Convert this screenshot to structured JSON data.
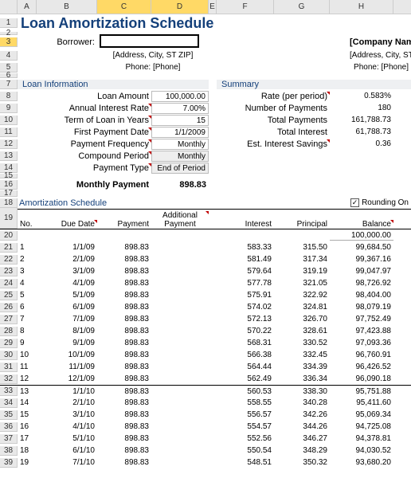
{
  "columns": [
    "A",
    "B",
    "C",
    "D",
    "E",
    "F",
    "G",
    "H"
  ],
  "title": "Loan Amortization Schedule",
  "borrower_label": "Borrower:",
  "address_placeholder": "[Address, City, ST ZIP]",
  "phone_placeholder": "Phone: [Phone]",
  "company_name": "[Company Name]",
  "company_address": "[Address, City, ST  ZIP]",
  "company_phone": "Phone: [Phone]",
  "loan_info_head": "Loan Information",
  "summary_head": "Summary",
  "loan_fields": [
    {
      "label": "Loan Amount",
      "value": "100,000.00",
      "grey": false
    },
    {
      "label": "Annual Interest Rate",
      "value": "7.00%",
      "grey": false
    },
    {
      "label": "Term of Loan in Years",
      "value": "15",
      "grey": false
    },
    {
      "label": "First Payment Date",
      "value": "1/1/2009",
      "grey": false
    },
    {
      "label": "Payment Frequency",
      "value": "Monthly",
      "grey": false
    },
    {
      "label": "Compound Period",
      "value": "Monthly",
      "grey": true
    },
    {
      "label": "Payment Type",
      "value": "End of Period",
      "grey": true
    }
  ],
  "summary_fields": [
    {
      "label": "Rate (per period)",
      "value": "0.583%"
    },
    {
      "label": "Number of Payments",
      "value": "180"
    },
    {
      "label": "Total Payments",
      "value": "161,788.73"
    },
    {
      "label": "Total Interest",
      "value": "61,788.73"
    },
    {
      "label": "Est. Interest Savings",
      "value": "0.36"
    }
  ],
  "monthly_payment_label": "Monthly Payment",
  "monthly_payment_value": "898.83",
  "amort_head": "Amortization Schedule",
  "rounding_label": "Rounding On",
  "sched_cols": {
    "no": "No.",
    "due": "Due Date",
    "pay": "Payment",
    "addl1": "Additional",
    "addl2": "Payment",
    "int": "Interest",
    "prin": "Principal",
    "bal": "Balance"
  },
  "start_balance": "100,000.00",
  "rows": [
    {
      "n": "1",
      "d": "1/1/09",
      "p": "898.83",
      "i": "583.33",
      "pr": "315.50",
      "b": "99,684.50"
    },
    {
      "n": "2",
      "d": "2/1/09",
      "p": "898.83",
      "i": "581.49",
      "pr": "317.34",
      "b": "99,367.16"
    },
    {
      "n": "3",
      "d": "3/1/09",
      "p": "898.83",
      "i": "579.64",
      "pr": "319.19",
      "b": "99,047.97"
    },
    {
      "n": "4",
      "d": "4/1/09",
      "p": "898.83",
      "i": "577.78",
      "pr": "321.05",
      "b": "98,726.92"
    },
    {
      "n": "5",
      "d": "5/1/09",
      "p": "898.83",
      "i": "575.91",
      "pr": "322.92",
      "b": "98,404.00"
    },
    {
      "n": "6",
      "d": "6/1/09",
      "p": "898.83",
      "i": "574.02",
      "pr": "324.81",
      "b": "98,079.19"
    },
    {
      "n": "7",
      "d": "7/1/09",
      "p": "898.83",
      "i": "572.13",
      "pr": "326.70",
      "b": "97,752.49"
    },
    {
      "n": "8",
      "d": "8/1/09",
      "p": "898.83",
      "i": "570.22",
      "pr": "328.61",
      "b": "97,423.88"
    },
    {
      "n": "9",
      "d": "9/1/09",
      "p": "898.83",
      "i": "568.31",
      "pr": "330.52",
      "b": "97,093.36"
    },
    {
      "n": "10",
      "d": "10/1/09",
      "p": "898.83",
      "i": "566.38",
      "pr": "332.45",
      "b": "96,760.91"
    },
    {
      "n": "11",
      "d": "11/1/09",
      "p": "898.83",
      "i": "564.44",
      "pr": "334.39",
      "b": "96,426.52"
    },
    {
      "n": "12",
      "d": "12/1/09",
      "p": "898.83",
      "i": "562.49",
      "pr": "336.34",
      "b": "96,090.18"
    },
    {
      "n": "13",
      "d": "1/1/10",
      "p": "898.83",
      "i": "560.53",
      "pr": "338.30",
      "b": "95,751.88"
    },
    {
      "n": "14",
      "d": "2/1/10",
      "p": "898.83",
      "i": "558.55",
      "pr": "340.28",
      "b": "95,411.60"
    },
    {
      "n": "15",
      "d": "3/1/10",
      "p": "898.83",
      "i": "556.57",
      "pr": "342.26",
      "b": "95,069.34"
    },
    {
      "n": "16",
      "d": "4/1/10",
      "p": "898.83",
      "i": "554.57",
      "pr": "344.26",
      "b": "94,725.08"
    },
    {
      "n": "17",
      "d": "5/1/10",
      "p": "898.83",
      "i": "552.56",
      "pr": "346.27",
      "b": "94,378.81"
    },
    {
      "n": "18",
      "d": "6/1/10",
      "p": "898.83",
      "i": "550.54",
      "pr": "348.29",
      "b": "94,030.52"
    },
    {
      "n": "19",
      "d": "7/1/10",
      "p": "898.83",
      "i": "548.51",
      "pr": "350.32",
      "b": "93,680.20"
    }
  ]
}
